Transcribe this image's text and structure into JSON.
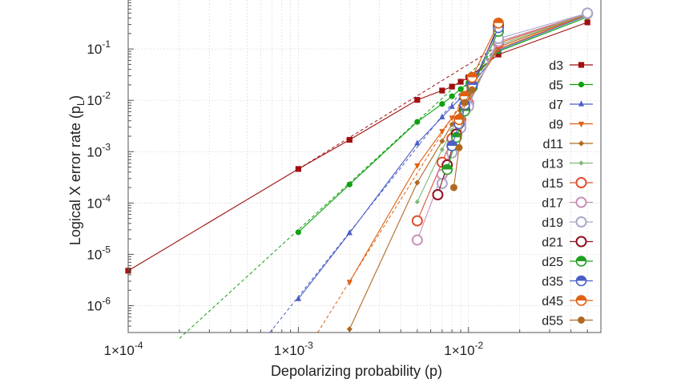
{
  "chart_data": {
    "type": "line",
    "xlabel": "Depolarizing probability (p)",
    "ylabel_main": "Logical X error rate (p",
    "ylabel_sub": "L",
    "ylabel_close": ")",
    "xscale": "log",
    "yscale": "log",
    "xlim": [
      0.0001,
      0.06
    ],
    "ylim": [
      3e-07,
      0.9
    ],
    "grid": true,
    "legend_position": "right",
    "x_ticks": [
      {
        "value": 0.0001,
        "base": "1×10",
        "exp": "-4"
      },
      {
        "value": 0.001,
        "base": "1×10",
        "exp": "-3"
      },
      {
        "value": 0.01,
        "base": "1×10",
        "exp": "-2"
      }
    ],
    "y_ticks": [
      {
        "value": 1e-06,
        "base": "10",
        "exp": "-6"
      },
      {
        "value": 1e-05,
        "base": "10",
        "exp": "-5"
      },
      {
        "value": 0.0001,
        "base": "10",
        "exp": "-4"
      },
      {
        "value": 0.001,
        "base": "10",
        "exp": "-3"
      },
      {
        "value": 0.01,
        "base": "10",
        "exp": "-2"
      },
      {
        "value": 0.1,
        "base": "10",
        "exp": "-1"
      }
    ],
    "series": [
      {
        "name": "d3",
        "color": "#a01010",
        "marker": "square",
        "x": [
          0.0001,
          0.001,
          0.002,
          0.005,
          0.007,
          0.008,
          0.009,
          0.01,
          0.015,
          0.05
        ],
        "y": [
          4.8e-06,
          0.00046,
          0.0017,
          0.0102,
          0.0155,
          0.0185,
          0.023,
          0.028,
          0.078,
          0.33
        ],
        "fit": {
          "x1": 0.001,
          "y1": 0.00046,
          "x2": 0.015,
          "y2": 0.115
        }
      },
      {
        "name": "d5",
        "color": "#10a010",
        "marker": "circle",
        "x": [
          0.001,
          0.002,
          0.005,
          0.007,
          0.008,
          0.009,
          0.01,
          0.015,
          0.05
        ],
        "y": [
          2.7e-05,
          0.00023,
          0.0038,
          0.0085,
          0.012,
          0.0165,
          0.022,
          0.09,
          0.42
        ],
        "fit": {
          "x1": 0.0002,
          "y1": 2.3e-07,
          "x2": 0.015,
          "y2": 0.11
        }
      },
      {
        "name": "d7",
        "color": "#4a5ec8",
        "marker": "triangle-up",
        "x": [
          0.001,
          0.002,
          0.005,
          0.007,
          0.008,
          0.009,
          0.01,
          0.015,
          0.05
        ],
        "y": [
          1.35e-06,
          2.6e-05,
          0.00145,
          0.0047,
          0.0075,
          0.011,
          0.016,
          0.095,
          0.45
        ],
        "fit": {
          "x1": 0.00068,
          "y1": 3e-07,
          "x2": 0.015,
          "y2": 0.12
        }
      },
      {
        "name": "d9",
        "color": "#e06010",
        "marker": "triangle-down",
        "x": [
          0.002,
          0.005,
          0.007,
          0.008,
          0.009,
          0.01,
          0.015,
          0.05
        ],
        "y": [
          2.9e-06,
          0.00054,
          0.0025,
          0.0046,
          0.0075,
          0.012,
          0.1,
          0.47
        ],
        "fit": {
          "x1": 0.0013,
          "y1": 3e-07,
          "x2": 0.015,
          "y2": 0.13
        }
      },
      {
        "name": "d11",
        "color": "#b06a20",
        "marker": "diamond",
        "x": [
          0.002,
          0.005,
          0.007,
          0.008,
          0.009,
          0.01,
          0.015,
          0.05
        ],
        "y": [
          3.5e-07,
          0.00025,
          0.0016,
          0.0034,
          0.0062,
          0.011,
          0.11,
          0.48
        ]
      },
      {
        "name": "d13",
        "color": "#80b878",
        "marker": "diamond-small",
        "x": [
          0.005,
          0.007,
          0.008,
          0.009,
          0.01,
          0.015,
          0.05
        ],
        "y": [
          0.000105,
          0.0011,
          0.0026,
          0.0052,
          0.0098,
          0.12,
          0.48
        ]
      },
      {
        "name": "d15",
        "color": "#e05030",
        "marker": "circle-open",
        "x": [
          0.005,
          0.007,
          0.008,
          0.009,
          0.01,
          0.015,
          0.05
        ],
        "y": [
          4.5e-05,
          0.00062,
          0.0018,
          0.0042,
          0.0088,
          0.13,
          0.49
        ]
      },
      {
        "name": "d17",
        "color": "#c890b8",
        "marker": "circle-open",
        "x": [
          0.005,
          0.007,
          0.008,
          0.009,
          0.01,
          0.015,
          0.05
        ],
        "y": [
          1.9e-05,
          0.00036,
          0.0013,
          0.0035,
          0.0082,
          0.14,
          0.49
        ]
      },
      {
        "name": "d19",
        "color": "#a8a8c8",
        "marker": "circle-open",
        "x": [
          0.007,
          0.008,
          0.009,
          0.01,
          0.015,
          0.05
        ],
        "y": [
          0.00024,
          0.00095,
          0.0029,
          0.0076,
          0.16,
          0.5
        ]
      },
      {
        "name": "d21",
        "color": "#901020",
        "marker": "circle-open",
        "x": [
          0.0066,
          0.0075,
          0.0085,
          0.0095,
          0.0105,
          0.015
        ],
        "y": [
          0.000145,
          0.00055,
          0.0022,
          0.0065,
          0.018,
          0.29
        ]
      },
      {
        "name": "d25",
        "color": "#20a020",
        "marker": "circle-half",
        "x": [
          0.0075,
          0.0085,
          0.0095,
          0.0105,
          0.015
        ],
        "y": [
          0.00045,
          0.0019,
          0.0062,
          0.018,
          0.22
        ]
      },
      {
        "name": "d35",
        "color": "#4a5ec8",
        "marker": "circle-half",
        "x": [
          0.008,
          0.0088,
          0.0095,
          0.0105,
          0.015
        ],
        "y": [
          0.0013,
          0.0035,
          0.0082,
          0.02,
          0.26
        ]
      },
      {
        "name": "d45",
        "color": "#e06010",
        "marker": "circle-half",
        "x": [
          0.0088,
          0.0095,
          0.0105,
          0.015
        ],
        "y": [
          0.0042,
          0.012,
          0.028,
          0.32
        ]
      },
      {
        "name": "d55",
        "color": "#b06a20",
        "marker": "circle-filled-big",
        "x": [
          0.0082,
          0.0088,
          0.0095,
          0.0105
        ],
        "y": [
          0.0002,
          0.0012,
          0.009,
          0.016
        ]
      }
    ]
  }
}
